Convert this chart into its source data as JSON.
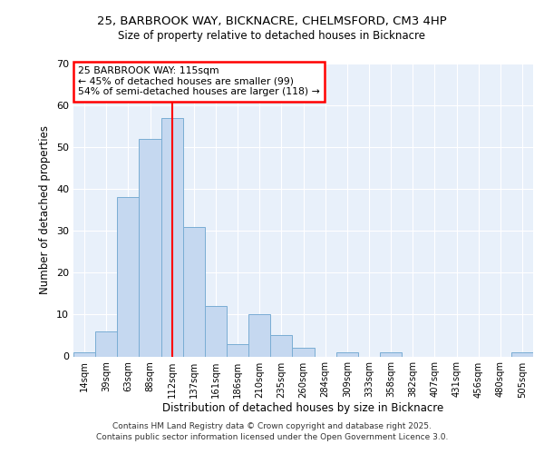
{
  "title1": "25, BARBROOK WAY, BICKNACRE, CHELMSFORD, CM3 4HP",
  "title2": "Size of property relative to detached houses in Bicknacre",
  "xlabel": "Distribution of detached houses by size in Bicknacre",
  "ylabel": "Number of detached properties",
  "categories": [
    "14sqm",
    "39sqm",
    "63sqm",
    "88sqm",
    "112sqm",
    "137sqm",
    "161sqm",
    "186sqm",
    "210sqm",
    "235sqm",
    "260sqm",
    "284sqm",
    "309sqm",
    "333sqm",
    "358sqm",
    "382sqm",
    "407sqm",
    "431sqm",
    "456sqm",
    "480sqm",
    "505sqm"
  ],
  "values": [
    1,
    6,
    38,
    52,
    57,
    31,
    12,
    3,
    10,
    5,
    2,
    0,
    1,
    0,
    1,
    0,
    0,
    0,
    0,
    0,
    1
  ],
  "bar_color": "#c5d8f0",
  "bar_edge_color": "#7aadd4",
  "red_line_index": 4,
  "ylim": [
    0,
    70
  ],
  "yticks": [
    0,
    10,
    20,
    30,
    40,
    50,
    60,
    70
  ],
  "annotation_line1": "25 BARBROOK WAY: 115sqm",
  "annotation_line2": "← 45% of detached houses are smaller (99)",
  "annotation_line3": "54% of semi-detached houses are larger (118) →",
  "footer1": "Contains HM Land Registry data © Crown copyright and database right 2025.",
  "footer2": "Contains public sector information licensed under the Open Government Licence 3.0.",
  "background_color": "#e8f0fa"
}
